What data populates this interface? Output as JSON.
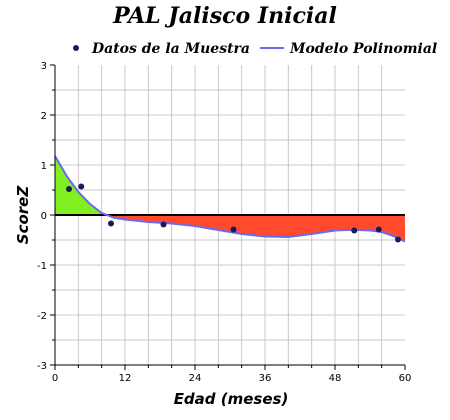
{
  "chart_data": {
    "type": "scatter",
    "title": "PAL Jalisco Inicial",
    "xlabel": "Edad (meses)",
    "ylabel": "ScoreZ",
    "xlim": [
      0,
      60
    ],
    "ylim": [
      -3,
      3
    ],
    "xticks": [
      0,
      12,
      24,
      36,
      48,
      60
    ],
    "yticks": [
      -3,
      -2,
      -1,
      0,
      1,
      2,
      3
    ],
    "grid": true,
    "legend_position": "top",
    "colors": {
      "points": "#1a1a5e",
      "curve": "#6a6af0",
      "positive_fill": "#80f020",
      "negative_fill": "#ff4a2e",
      "grid": "#c8c8c8"
    },
    "series": [
      {
        "name": "Datos de la Muestra",
        "type": "scatter",
        "x": [
          2.4,
          4.5,
          9.6,
          18.6,
          30.6,
          51.3,
          55.5,
          58.8
        ],
        "y": [
          0.52,
          0.57,
          -0.17,
          -0.19,
          -0.29,
          -0.31,
          -0.29,
          -0.49
        ]
      },
      {
        "name": "Modelo Polinomial",
        "type": "line",
        "x": [
          0,
          2,
          4,
          6,
          8,
          10,
          12,
          16,
          20,
          24,
          28,
          32,
          36,
          40,
          44,
          48,
          50,
          52,
          54,
          56,
          58,
          60
        ],
        "y": [
          1.18,
          0.78,
          0.46,
          0.22,
          0.04,
          -0.05,
          -0.09,
          -0.14,
          -0.17,
          -0.22,
          -0.3,
          -0.38,
          -0.43,
          -0.44,
          -0.38,
          -0.31,
          -0.3,
          -0.3,
          -0.31,
          -0.34,
          -0.42,
          -0.53
        ]
      }
    ]
  }
}
